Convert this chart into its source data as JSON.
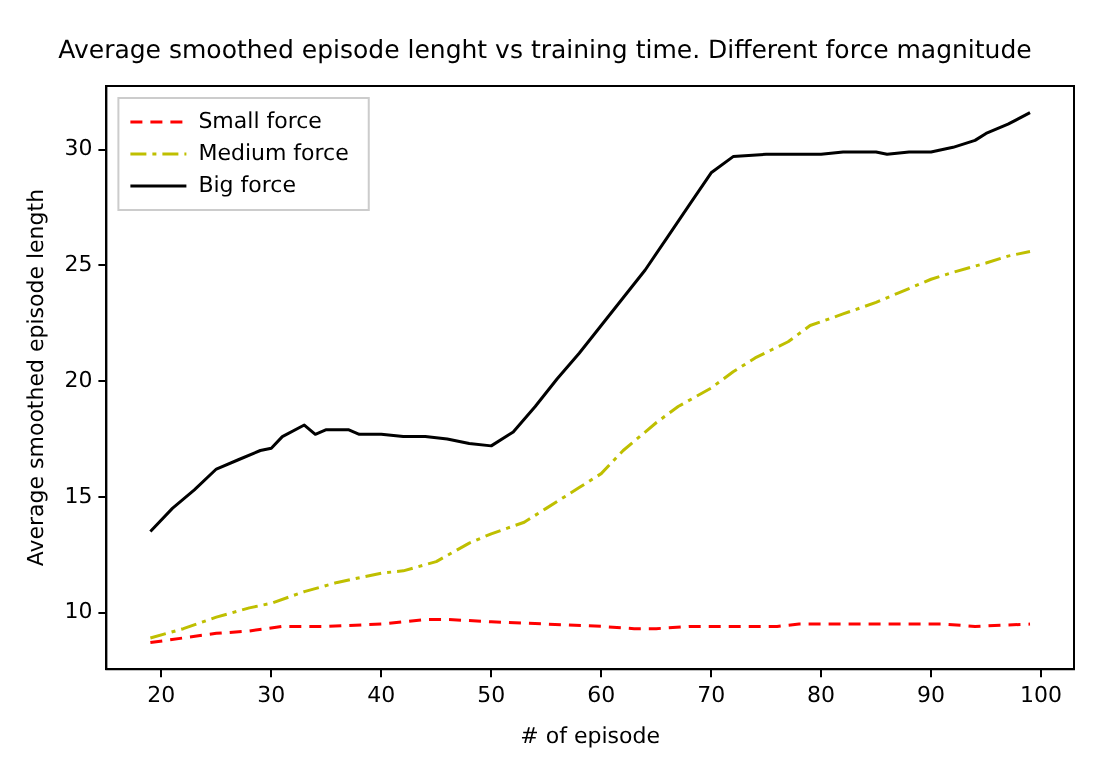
{
  "chart_data": {
    "type": "line",
    "title": "Average smoothed episode lenght vs training time. Different force magnitude",
    "xlabel": "# of episode",
    "ylabel": "Average smoothed episode length",
    "xlim": [
      15,
      103
    ],
    "xticks": [
      20,
      30,
      40,
      50,
      60,
      70,
      80,
      90,
      100
    ],
    "ylim": [
      7.55,
      32.75
    ],
    "yticks": [
      10,
      15,
      20,
      25,
      30
    ],
    "grid": false,
    "legend": "top left",
    "marker": "none",
    "series": [
      {
        "name": "Small force",
        "color": "#ff0000",
        "line_style": "dashed",
        "x": [
          19,
          22,
          25,
          28,
          31,
          35,
          40,
          44,
          46,
          50,
          55,
          60,
          63,
          65,
          68,
          72,
          76,
          78,
          82,
          85,
          88,
          91,
          94,
          99
        ],
        "values": [
          8.7,
          8.9,
          9.1,
          9.2,
          9.4,
          9.4,
          9.5,
          9.7,
          9.7,
          9.6,
          9.5,
          9.4,
          9.3,
          9.3,
          9.4,
          9.4,
          9.4,
          9.5,
          9.5,
          9.5,
          9.5,
          9.5,
          9.4,
          9.5
        ]
      },
      {
        "name": "Medium force",
        "color": "#bfbf00",
        "line_style": "dashdot",
        "x": [
          19,
          22,
          25,
          28,
          30,
          33,
          36,
          40,
          42,
          45,
          48,
          50,
          53,
          55,
          58,
          60,
          62,
          65,
          67,
          70,
          72,
          74,
          77,
          79,
          82,
          85,
          87,
          90,
          92,
          95,
          97,
          99
        ],
        "values": [
          8.9,
          9.3,
          9.8,
          10.2,
          10.4,
          10.9,
          11.3,
          11.7,
          11.8,
          12.2,
          13.0,
          13.4,
          13.9,
          14.5,
          15.4,
          16.0,
          17.0,
          18.2,
          18.9,
          19.7,
          20.4,
          21.0,
          21.7,
          22.4,
          22.9,
          23.4,
          23.8,
          24.4,
          24.7,
          25.1,
          25.4,
          25.6
        ]
      },
      {
        "name": "Big force",
        "color": "#000000",
        "line_style": "solid",
        "x": [
          19,
          21,
          23,
          25,
          27,
          29,
          30,
          31,
          33,
          34,
          35,
          37,
          38,
          40,
          42,
          44,
          46,
          48,
          50,
          52,
          54,
          56,
          58,
          60,
          62,
          64,
          66,
          68,
          70,
          72,
          75,
          78,
          80,
          82,
          85,
          86,
          88,
          90,
          92,
          94,
          95,
          97,
          99
        ],
        "values": [
          13.5,
          14.5,
          15.3,
          16.2,
          16.6,
          17.0,
          17.1,
          17.6,
          18.1,
          17.7,
          17.9,
          17.9,
          17.7,
          17.7,
          17.6,
          17.6,
          17.5,
          17.3,
          17.2,
          17.8,
          18.9,
          20.1,
          21.2,
          22.4,
          23.6,
          24.8,
          26.2,
          27.6,
          29.0,
          29.7,
          29.8,
          29.8,
          29.8,
          29.9,
          29.9,
          29.8,
          29.9,
          29.9,
          30.1,
          30.4,
          30.7,
          31.1,
          31.6
        ]
      }
    ]
  }
}
